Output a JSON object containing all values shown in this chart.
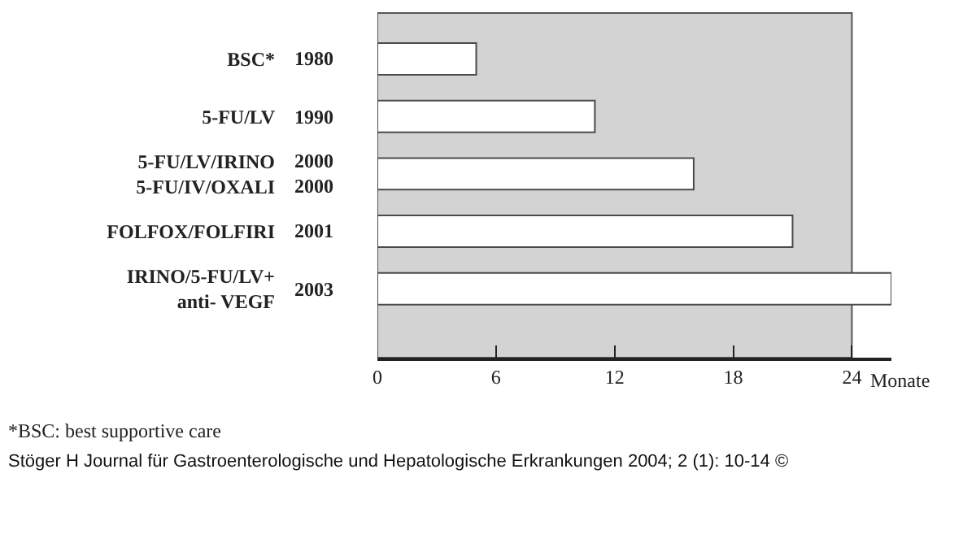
{
  "chart_data": {
    "type": "bar",
    "orientation": "horizontal",
    "categories": [
      "BSC*",
      "5-FU/LV",
      "5-FU/LV/IRINO\n5-FU/IV/OXALI",
      "FOLFOX/FOLFIRI",
      "IRINO/5-FU/LV+\nanti- VEGF"
    ],
    "values": [
      5,
      11,
      16,
      21,
      26
    ],
    "color": "#ffffff",
    "xlim": [
      0,
      26
    ],
    "xticks": [
      0,
      6,
      12,
      18,
      24
    ],
    "xlabel": "Monate",
    "bands": [
      {
        "axis": "x",
        "from": 0,
        "to": 24,
        "color": "#d3d3d3"
      }
    ],
    "annotations": [
      "1980",
      "1990",
      "2000\n2000",
      "2001",
      "2003",
      "*BSC: best supportive care",
      "Stöger H Journal für Gastroenterologische und Hepatologische Erkrankungen 2004; 2 (1): 10-14 ©"
    ]
  }
}
